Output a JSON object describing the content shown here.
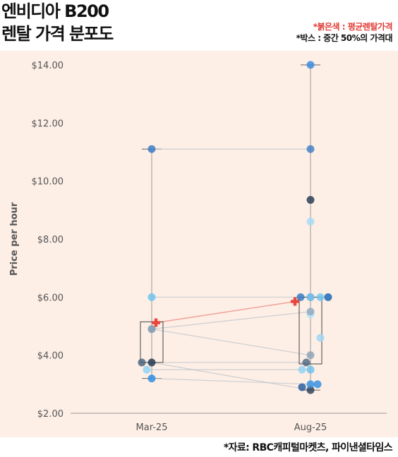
{
  "title": {
    "line1": "엔비디아 B200",
    "line2": "렌탈 가격 분포도"
  },
  "notes": {
    "red": "*붉은색 : 평균렌탈가격",
    "black": "*박스 : 중간 50%의 가격대"
  },
  "source": "*자료: RBC캐피털마켓츠, 파이낸셜타임스",
  "colors": {
    "background": "#fdefe6",
    "mean": "#e8463f",
    "box": "#555555",
    "grid": "#cfc8c2"
  },
  "chart_data": {
    "type": "box",
    "ylabel": "Price per hour",
    "categories": [
      "Mar-25",
      "Aug-25"
    ],
    "ylim": [
      2,
      14
    ],
    "y_ticks": [
      "$2.00",
      "$4.00",
      "$6.00",
      "$8.00",
      "$10.00",
      "$12.00",
      "$14.00"
    ],
    "y_tick_values": [
      2,
      4,
      6,
      8,
      10,
      12,
      14
    ],
    "box": [
      {
        "category": "Mar-25",
        "q1": 3.75,
        "q3": 5.15,
        "min": 3.2,
        "max": 11.1,
        "mean": 5.12
      },
      {
        "category": "Aug-25",
        "q1": 3.7,
        "q3": 6.0,
        "min": 2.8,
        "max": 14.0,
        "mean": 5.85
      }
    ],
    "providers": [
      {
        "mar": 11.1,
        "aug": 11.1,
        "color": "#3b7cc4"
      },
      {
        "mar": 6.0,
        "aug": 6.0,
        "color": "#6ec4f0"
      },
      {
        "mar": 4.9,
        "aug": 5.5,
        "color": "#8fa7bd"
      },
      {
        "mar": 4.9,
        "aug": 4.0,
        "color": "#8aa0b5"
      },
      {
        "mar": 3.75,
        "aug": 3.75,
        "color": "#4a6680"
      },
      {
        "mar": 3.75,
        "aug": 2.8,
        "color": "#243b55"
      },
      {
        "mar": 3.5,
        "aug": 3.5,
        "color": "#8fd3f4"
      },
      {
        "mar": 3.2,
        "aug": 3.0,
        "color": "#2f8ee0"
      }
    ],
    "aug_only": [
      {
        "y": 14.0,
        "color": "#3b8de0"
      },
      {
        "y": 9.35,
        "color": "#2a3d55"
      },
      {
        "y": 8.6,
        "color": "#a8dcf7"
      },
      {
        "y": 6.0,
        "color": "#3b7cc4"
      },
      {
        "y": 6.0,
        "color": "#2c6fb8"
      },
      {
        "y": 6.0,
        "color": "#7fcaf0"
      },
      {
        "y": 5.4,
        "color": "#b9e3f8"
      },
      {
        "y": 4.6,
        "color": "#a0d6f5"
      },
      {
        "y": 3.5,
        "color": "#6fc2ee"
      },
      {
        "y": 2.9,
        "color": "#2d5f9e"
      },
      {
        "y": 3.0,
        "color": "#3a90e0"
      }
    ]
  }
}
